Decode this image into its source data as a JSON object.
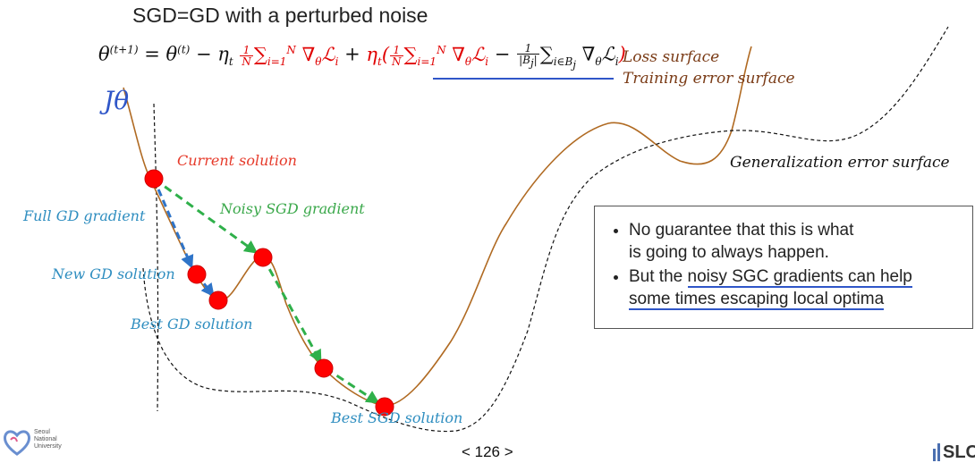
{
  "title": "SGD=GD with a perturbed noise",
  "formula": {
    "lhs": "θ",
    "lhs_sup": "(t+1)",
    "eq": " = ",
    "theta": "θ",
    "theta_sup": "(t)",
    "minus_eta": " − η",
    "eta_sub": "t",
    "one": "1",
    "N": "N",
    "sum_gd": "∑",
    "sum_sub": "i=1",
    "sum_sup": "N",
    "grad": " ∇",
    "grad_sub": "θ",
    "loss": "ℒ",
    "loss_sub": "i",
    "plus": " + ",
    "eta": "η",
    "open": "(",
    "minus": " − ",
    "bj": "|B",
    "bj_sub": "j",
    "bj_close": "|",
    "sum_b_sub": "i∈B",
    "sum_b_sub_j": "j",
    "close": ")"
  },
  "j_theta": "Jθ",
  "labels": {
    "loss_surface": "Loss surface",
    "training_surface": "Training error surface",
    "generalization_surface": "Generalization error surface",
    "current_solution": "Current solution",
    "full_gd_gradient": "Full GD gradient",
    "noisy_sgd_gradient": "Noisy SGD gradient",
    "new_gd_solution": "New GD solution",
    "best_gd_solution": "Best GD solution",
    "best_sgd_solution": "Best SGD solution"
  },
  "notes": {
    "line1a": "No guarantee that this is what",
    "line1b": "is going to always happen.",
    "line2a": "But the ",
    "line2b": "noisy SGC gradients can  help",
    "line2c": "some times escaping local  optima"
  },
  "page_number": "< 126 >",
  "logo_left_text": "Seoul National University",
  "logo_right_text": "SLCF",
  "colors": {
    "loss_curve": "#b06a22",
    "generalization_curve": "#111111",
    "points": "#ff0000",
    "gd_arrow": "#2f74c8",
    "sgd_arrow": "#2fb04a",
    "underline": "#2f56c8"
  }
}
